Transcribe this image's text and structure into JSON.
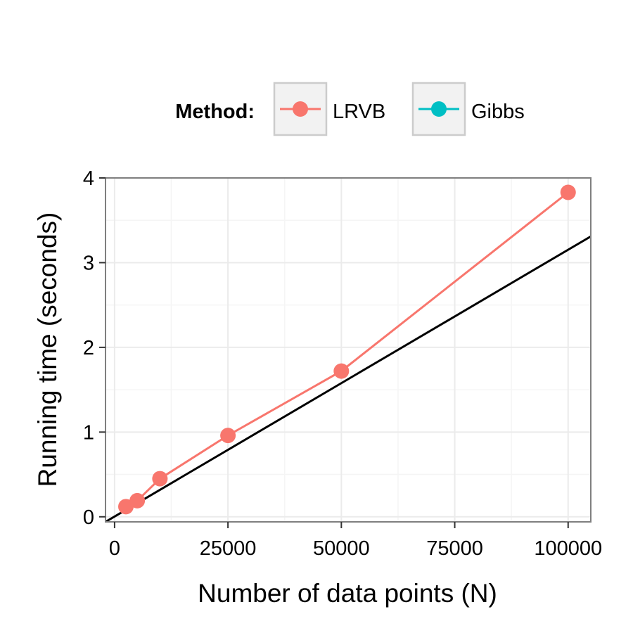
{
  "chart_data": {
    "type": "line",
    "xlabel": "Number of data points (N)",
    "ylabel": "Running time (seconds)",
    "xlim": [
      -2000,
      105000
    ],
    "ylim": [
      -0.06,
      4.0
    ],
    "x_ticks": [
      0,
      25000,
      50000,
      75000,
      100000
    ],
    "x_tick_labels": [
      "0",
      "25000",
      "50000",
      "75000",
      "100000"
    ],
    "y_ticks": [
      0,
      1,
      2,
      3,
      4
    ],
    "y_tick_labels": [
      "0",
      "1",
      "2",
      "3",
      "4"
    ],
    "grid": true,
    "legend": {
      "title": "Method:",
      "position": "top",
      "entries": [
        {
          "name": "LRVB",
          "color": "#F8766D"
        },
        {
          "name": "Gibbs",
          "color": "#00BFC4"
        }
      ]
    },
    "series": [
      {
        "name": "LRVB",
        "color": "#F8766D",
        "x": [
          2500,
          5000,
          10000,
          25000,
          50000,
          100000
        ],
        "y": [
          0.12,
          0.19,
          0.45,
          0.96,
          1.72,
          3.83
        ]
      },
      {
        "name": "Gibbs",
        "color": "#00BFC4",
        "x": [],
        "y": []
      }
    ],
    "reference_line": {
      "color": "#000000",
      "x": [
        -2000,
        105000
      ],
      "y": [
        -0.06,
        3.31
      ]
    }
  }
}
